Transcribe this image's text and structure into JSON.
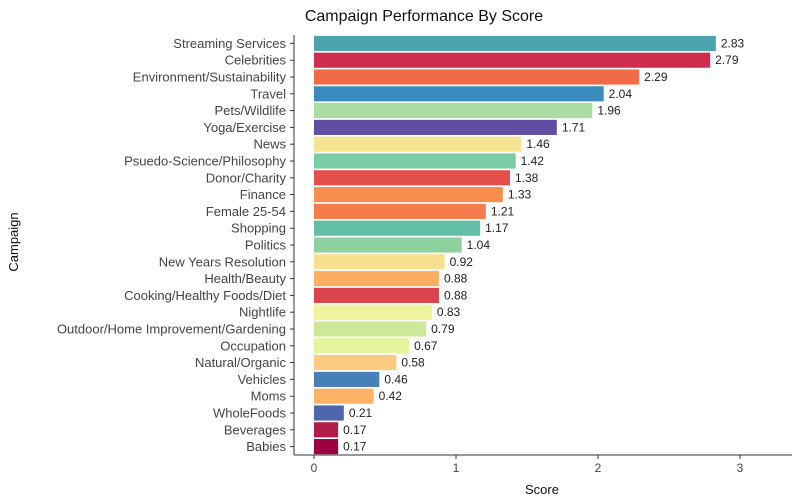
{
  "chart_data": {
    "type": "bar",
    "orientation": "horizontal",
    "title": "Campaign Performance By Score",
    "xlabel": "Score",
    "ylabel": "Campaign",
    "xlim": [
      0,
      3.2
    ],
    "x_ticks": [
      0,
      1,
      2,
      3
    ],
    "grid": false,
    "categories": [
      "Streaming Services",
      "Celebrities",
      "Environment/Sustainability",
      "Travel",
      "Pets/Wildlife",
      "Yoga/Exercise",
      "News",
      "Psuedo-Science/Philosophy",
      "Donor/Charity",
      "Finance",
      "Female 25-54",
      "Shopping",
      "Politics",
      "New Years Resolution",
      "Health/Beauty",
      "Cooking/Healthy Foods/Diet",
      "Nightlife",
      "Outdoor/Home Improvement/Gardening",
      "Occupation",
      "Natural/Organic",
      "Vehicles",
      "Moms",
      "WholeFoods",
      "Beverages",
      "Babies"
    ],
    "values": [
      2.83,
      2.79,
      2.29,
      2.04,
      1.96,
      1.71,
      1.46,
      1.42,
      1.38,
      1.33,
      1.21,
      1.17,
      1.04,
      0.92,
      0.88,
      0.88,
      0.83,
      0.79,
      0.67,
      0.58,
      0.46,
      0.42,
      0.21,
      0.17,
      0.17
    ],
    "data_labels": [
      "2.83",
      "2.79",
      "2.29",
      "2.04",
      "1.96",
      "1.71",
      "1.46",
      "1.42",
      "1.38",
      "1.33",
      "1.21",
      "1.17",
      "1.04",
      "0.92",
      "0.88",
      "0.88",
      "0.83",
      "0.79",
      "0.67",
      "0.58",
      "0.46",
      "0.42",
      "0.21",
      "0.17",
      "0.17"
    ],
    "colors": [
      "#4aa3ad",
      "#cf2d4e",
      "#f26b47",
      "#3a8cbc",
      "#abdda4",
      "#5f4ea2",
      "#f3e58f",
      "#79cca4",
      "#e34f4a",
      "#f88e4d",
      "#f57c4c",
      "#63bea6",
      "#8fd19e",
      "#f7e08d",
      "#fdad60",
      "#db434d",
      "#eef39d",
      "#cce99a",
      "#e4f49b",
      "#fec980",
      "#4680b8",
      "#fdb264",
      "#4f65ae",
      "#b21c48",
      "#9e0142"
    ]
  }
}
